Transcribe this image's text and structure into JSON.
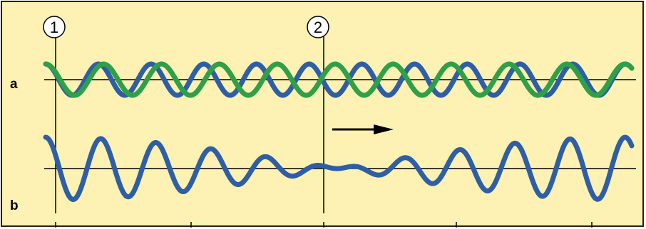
{
  "figure": {
    "row_labels": {
      "a": "a",
      "b": "b"
    },
    "markers": [
      {
        "label": "1"
      },
      {
        "label": "2"
      }
    ],
    "colors": {
      "background": "#fdf1b3",
      "border": "#222222",
      "axis": "#000000",
      "wave_blue": "#2e5fa6",
      "wave_green": "#2fa048",
      "arrow": "#000000"
    },
    "icons": [
      "right-arrow-icon"
    ]
  }
}
